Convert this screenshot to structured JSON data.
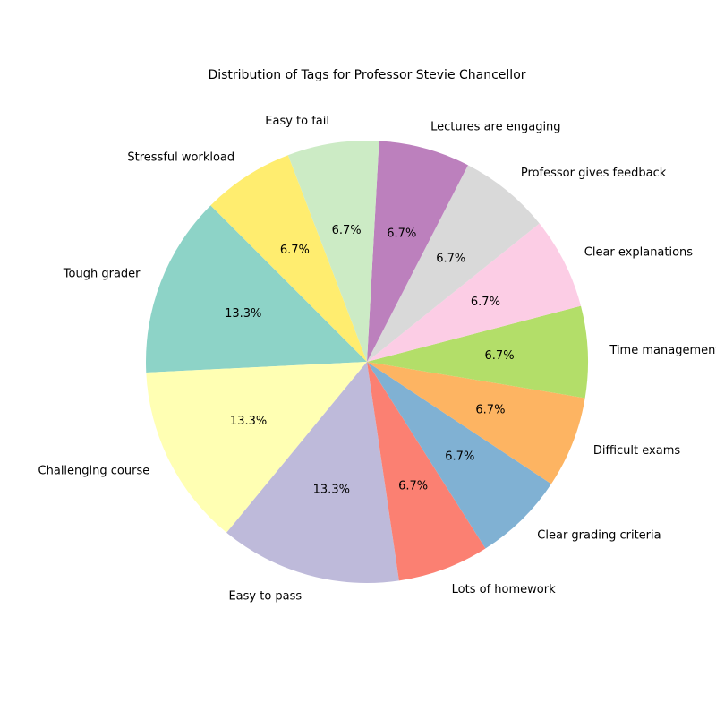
{
  "chart_data": {
    "type": "pie",
    "title": "Distribution of Tags for Professor Stevie Chancellor",
    "start_angle_deg": 135,
    "direction": "counterclockwise",
    "autopct_format": "%.1f%%",
    "slices": [
      {
        "label": "Tough grader",
        "value": 13.3,
        "pct_label": "13.3%",
        "color": "#8dd3c7"
      },
      {
        "label": "Challenging course",
        "value": 13.3,
        "pct_label": "13.3%",
        "color": "#ffffb3"
      },
      {
        "label": "Easy to pass",
        "value": 13.3,
        "pct_label": "13.3%",
        "color": "#bebada"
      },
      {
        "label": "Lots of homework",
        "value": 6.7,
        "pct_label": "6.7%",
        "color": "#fb8072"
      },
      {
        "label": "Clear grading criteria",
        "value": 6.7,
        "pct_label": "6.7%",
        "color": "#80b1d3"
      },
      {
        "label": "Difficult exams",
        "value": 6.7,
        "pct_label": "6.7%",
        "color": "#fdb462"
      },
      {
        "label": "Time management",
        "value": 6.7,
        "pct_label": "6.7%",
        "color": "#b3de69"
      },
      {
        "label": "Clear explanations",
        "value": 6.7,
        "pct_label": "6.7%",
        "color": "#fccde5"
      },
      {
        "label": "Professor gives feedback",
        "value": 6.7,
        "pct_label": "6.7%",
        "color": "#d9d9d9"
      },
      {
        "label": "Lectures are engaging",
        "value": 6.7,
        "pct_label": "6.7%",
        "color": "#bc80bd"
      },
      {
        "label": "Easy to fail",
        "value": 6.7,
        "pct_label": "6.7%",
        "color": "#ccebc5"
      },
      {
        "label": "Stressful workload",
        "value": 6.7,
        "pct_label": "6.7%",
        "color": "#ffed6f"
      }
    ]
  }
}
